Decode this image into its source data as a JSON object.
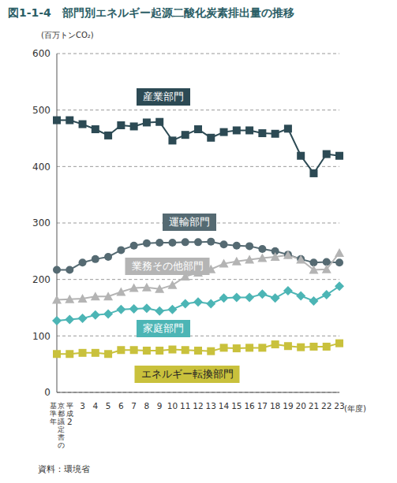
{
  "chart_data": {
    "type": "line",
    "title": "図1-1-4　部門別エネルギー起源二酸化炭素排出量の推移",
    "y_label": "(百万トンCO₂)",
    "x_label": "(年度)",
    "source": "資料：環境省",
    "categories": [
      "京都議定書の基準年",
      "平成2",
      "3",
      "4",
      "5",
      "6",
      "7",
      "8",
      "9",
      "10",
      "11",
      "12",
      "13",
      "14",
      "15",
      "16",
      "17",
      "18",
      "19",
      "20",
      "21",
      "22",
      "23"
    ],
    "ylim": [
      0,
      600
    ],
    "yticks": [
      0,
      100,
      200,
      300,
      400,
      500,
      600
    ],
    "grid": true,
    "legend": "none",
    "series": [
      {
        "name": "産業部門",
        "color": "#2c4a54",
        "marker": "square",
        "values": [
          482,
          482,
          475,
          466,
          455,
          473,
          471,
          478,
          479,
          446,
          456,
          466,
          451,
          461,
          464,
          464,
          459,
          458,
          467,
          419,
          388,
          422,
          419
        ]
      },
      {
        "name": "運輸部門",
        "color": "#556a72",
        "marker": "circle",
        "values": [
          217,
          217,
          230,
          236,
          240,
          252,
          260,
          264,
          265,
          265,
          266,
          266,
          267,
          262,
          260,
          259,
          254,
          250,
          244,
          236,
          230,
          231,
          230
        ]
      },
      {
        "name": "業務その他部門",
        "color": "#b4b4b4",
        "marker": "triangle",
        "values": [
          164,
          165,
          166,
          170,
          170,
          178,
          185,
          186,
          183,
          190,
          205,
          212,
          218,
          228,
          232,
          235,
          238,
          240,
          243,
          235,
          217,
          218,
          247
        ]
      },
      {
        "name": "家庭部門",
        "color": "#4cb5b5",
        "marker": "diamond",
        "values": [
          127,
          129,
          131,
          137,
          139,
          147,
          148,
          149,
          144,
          147,
          157,
          160,
          157,
          167,
          168,
          168,
          174,
          167,
          180,
          171,
          162,
          173,
          188
        ]
      },
      {
        "name": "エネルギー転換部門",
        "color": "#c9c13c",
        "marker": "square",
        "values": [
          68,
          68,
          70,
          70,
          68,
          75,
          75,
          74,
          74,
          76,
          75,
          74,
          73,
          79,
          78,
          79,
          79,
          85,
          82,
          80,
          81,
          81,
          87
        ]
      }
    ]
  }
}
